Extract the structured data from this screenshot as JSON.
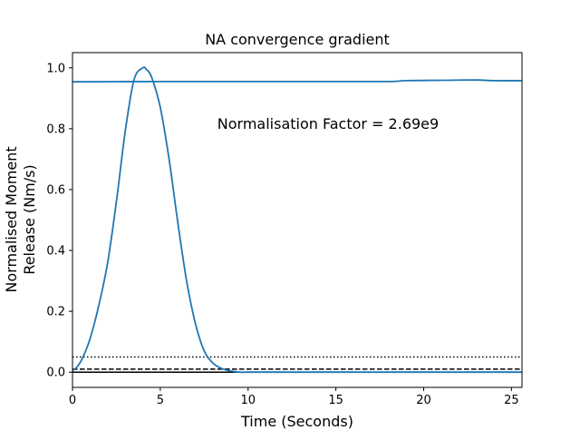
{
  "chart_data": {
    "type": "line",
    "title": "NA convergence gradient",
    "xlabel": "Time (Seconds)",
    "ylabel_lines": [
      "Normalised Moment",
      "Release (Nm/s)"
    ],
    "annotation": "Normalisation Factor = 2.69e9",
    "xlim": [
      0,
      25.6
    ],
    "ylim": [
      -0.05,
      1.05
    ],
    "x_ticks": [
      0,
      5,
      10,
      15,
      20,
      25
    ],
    "y_ticks": [
      0.0,
      0.2,
      0.4,
      0.6,
      0.8,
      1.0
    ],
    "grid": false,
    "series": [
      {
        "color": "#1f77b4",
        "x": [
          0,
          0.3,
          0.6,
          1.0,
          1.5,
          2.0,
          2.5,
          3.0,
          3.5,
          4.0,
          4.2,
          4.5,
          5.0,
          5.5,
          6.0,
          6.5,
          7.0,
          7.5,
          8.0,
          8.5,
          9.0,
          9.5,
          10.0,
          12,
          15,
          20,
          25.6
        ],
        "y": [
          0.005,
          0.02,
          0.05,
          0.11,
          0.22,
          0.36,
          0.56,
          0.79,
          0.96,
          1.0,
          0.995,
          0.97,
          0.87,
          0.7,
          0.49,
          0.3,
          0.16,
          0.07,
          0.03,
          0.012,
          0.004,
          0.0,
          0.0,
          0.0,
          0.0,
          0.0,
          0.0
        ]
      },
      {
        "color": "#1f77b4",
        "x": [
          0,
          5,
          10,
          15,
          18,
          19,
          21,
          23,
          24,
          25.6
        ],
        "y": [
          0.954,
          0.955,
          0.955,
          0.955,
          0.955,
          0.958,
          0.959,
          0.96,
          0.958,
          0.958
        ]
      }
    ],
    "reference_lines": [
      {
        "y": 0.05,
        "style": "dotted",
        "color": "#000000"
      },
      {
        "y": 0.01,
        "style": "dashed",
        "color": "#000000"
      },
      {
        "y": 0.0,
        "style": "solid",
        "color": "#000000"
      }
    ]
  }
}
